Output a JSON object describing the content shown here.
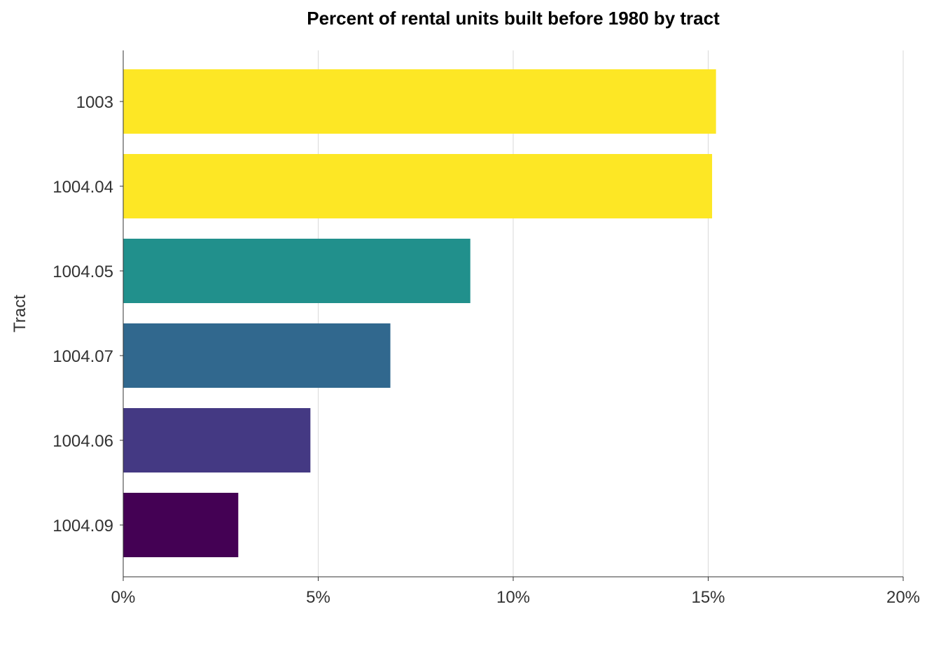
{
  "chart_data": {
    "type": "bar",
    "orientation": "horizontal",
    "title": "Percent of rental units built before 1980 by tract",
    "xlabel": "",
    "ylabel": "Tract",
    "xlim": [
      0,
      20
    ],
    "x_ticks": [
      0,
      5,
      10,
      15,
      20
    ],
    "x_tick_labels": [
      "0%",
      "5%",
      "10%",
      "15%",
      "20%"
    ],
    "grid": "vertical major gridlines",
    "legend": "none",
    "categories": [
      "1003",
      "1004.04",
      "1004.05",
      "1004.07",
      "1004.06",
      "1004.09"
    ],
    "values": [
      15.2,
      15.1,
      8.9,
      6.85,
      4.8,
      2.95
    ],
    "colors": [
      "#fde725",
      "#fde725",
      "#21908c",
      "#31688e",
      "#443983",
      "#440154"
    ]
  }
}
